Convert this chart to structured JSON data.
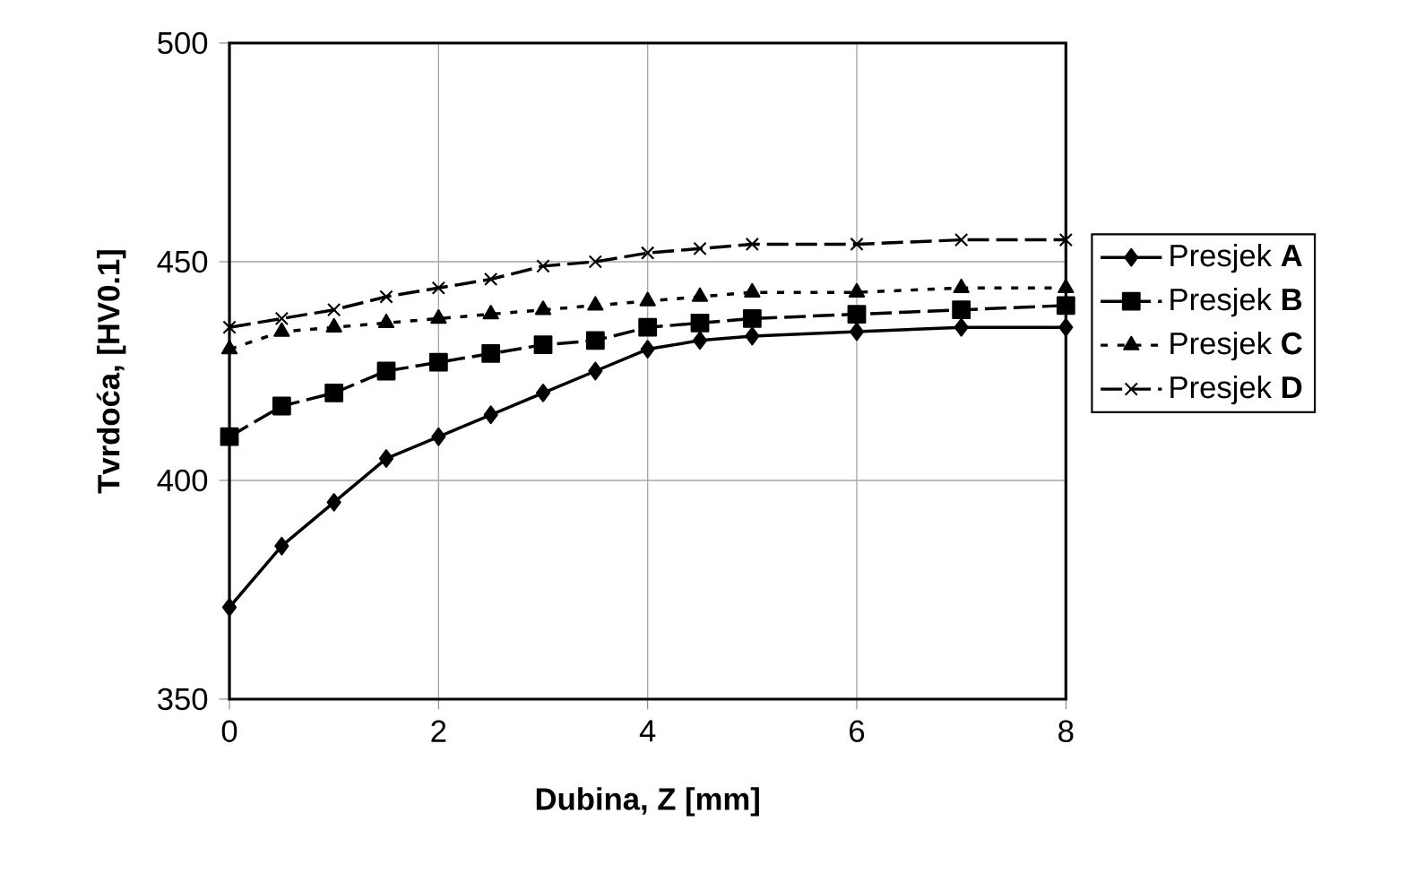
{
  "chart_data": {
    "type": "line",
    "xlabel": "Dubina, Z [mm]",
    "ylabel": "Tvrdoća, [HV0.1]",
    "x": [
      0,
      0.5,
      1,
      1.5,
      2,
      2.5,
      3,
      3.5,
      4,
      4.5,
      5,
      6,
      7,
      8
    ],
    "series": [
      {
        "name": "Presjek **A**",
        "color": "#000000",
        "marker": "diamond",
        "line_style": "solid",
        "values": [
          371,
          385,
          395,
          405,
          410,
          415,
          420,
          425,
          430,
          432,
          433,
          434,
          435,
          435
        ]
      },
      {
        "name": "Presjek **B**",
        "color": "#000000",
        "marker": "square",
        "line_style": "dashed",
        "values": [
          410,
          417,
          420,
          425,
          427,
          429,
          431,
          432,
          435,
          436,
          437,
          438,
          439,
          440
        ]
      },
      {
        "name": "Presjek **C**",
        "color": "#000000",
        "marker": "triangle",
        "line_style": "dotted",
        "values": [
          430,
          434,
          435,
          436,
          437,
          438,
          439,
          440,
          441,
          442,
          443,
          443,
          444,
          444
        ]
      },
      {
        "name": "Presjek **D**",
        "color": "#000000",
        "marker": "cross",
        "line_style": "dashed",
        "values": [
          435,
          437,
          439,
          442,
          444,
          446,
          449,
          450,
          452,
          453,
          454,
          454,
          455,
          455
        ]
      }
    ],
    "xlim": [
      0,
      8
    ],
    "xticks": [
      0,
      2,
      4,
      6,
      8
    ],
    "ylim": [
      350,
      500
    ],
    "yticks": [
      350,
      400,
      450,
      500
    ],
    "grid": true,
    "legend": "right"
  }
}
